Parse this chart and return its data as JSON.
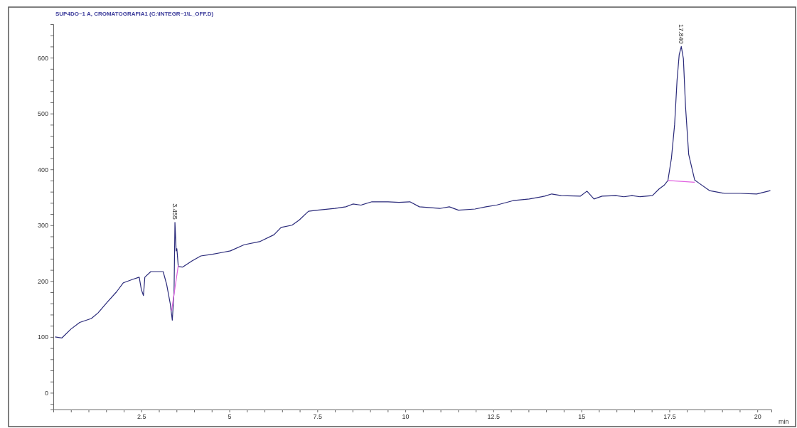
{
  "chart_data": {
    "type": "line",
    "title": "SUP4DO~1 A, CROMATOGRAFIA1 (C:\\INTEGR~1\\L_OFF.D)",
    "xlabel": "min",
    "xlim": [
      0,
      20.4
    ],
    "ylim": [
      -30,
      660
    ],
    "xticks": [
      {
        "value": 0.5,
        "label": null
      },
      {
        "value": 1,
        "label": null
      },
      {
        "value": 1.5,
        "label": null
      },
      {
        "value": 2,
        "label": null
      },
      2.5,
      {
        "value": 3,
        "label": null
      },
      {
        "value": 3.5,
        "label": null
      },
      {
        "value": 4,
        "label": null
      },
      {
        "value": 4.5,
        "label": null
      },
      5,
      {
        "value": 5.5,
        "label": null
      },
      {
        "value": 6,
        "label": null
      },
      {
        "value": 6.5,
        "label": null
      },
      {
        "value": 7,
        "label": null
      },
      7.5,
      {
        "value": 8,
        "label": null
      },
      {
        "value": 8.5,
        "label": null
      },
      {
        "value": 9,
        "label": null
      },
      {
        "value": 9.5,
        "label": null
      },
      10,
      {
        "value": 10.5,
        "label": null
      },
      {
        "value": 11,
        "label": null
      },
      {
        "value": 11.5,
        "label": null
      },
      {
        "value": 12,
        "label": null
      },
      12.5,
      {
        "value": 13,
        "label": null
      },
      {
        "value": 13.5,
        "label": null
      },
      {
        "value": 14,
        "label": null
      },
      {
        "value": 14.5,
        "label": null
      },
      15,
      {
        "value": 15.5,
        "label": null
      },
      {
        "value": 16,
        "label": null
      },
      {
        "value": 16.5,
        "label": null
      },
      {
        "value": 17,
        "label": null
      },
      17.5,
      {
        "value": 18,
        "label": null
      },
      {
        "value": 18.5,
        "label": null
      },
      {
        "value": 19,
        "label": null
      },
      {
        "value": 19.5,
        "label": null
      },
      20
    ],
    "yticks": [
      {
        "value": -20,
        "label": null
      },
      0,
      {
        "value": 20,
        "label": null
      },
      {
        "value": 40,
        "label": null
      },
      {
        "value": 60,
        "label": null
      },
      {
        "value": 80,
        "label": null
      },
      100,
      {
        "value": 120,
        "label": null
      },
      {
        "value": 140,
        "label": null
      },
      {
        "value": 160,
        "label": null
      },
      {
        "value": 180,
        "label": null
      },
      200,
      {
        "value": 220,
        "label": null
      },
      {
        "value": 240,
        "label": null
      },
      {
        "value": 260,
        "label": null
      },
      {
        "value": 280,
        "label": null
      },
      300,
      {
        "value": 320,
        "label": null
      },
      {
        "value": 340,
        "label": null
      },
      {
        "value": 360,
        "label": null
      },
      {
        "value": 380,
        "label": null
      },
      400,
      {
        "value": 420,
        "label": null
      },
      {
        "value": 440,
        "label": null
      },
      {
        "value": 460,
        "label": null
      },
      {
        "value": 480,
        "label": null
      },
      500,
      {
        "value": 520,
        "label": null
      },
      {
        "value": 540,
        "label": null
      },
      {
        "value": 560,
        "label": null
      },
      {
        "value": 580,
        "label": null
      },
      600,
      {
        "value": 620,
        "label": null
      },
      {
        "value": 640,
        "label": null
      }
    ],
    "series": [
      {
        "color": "#2a2a7a",
        "x": [
          0.05,
          0.24,
          0.5,
          0.75,
          1.08,
          1.27,
          1.53,
          1.8,
          1.99,
          2.25,
          2.44,
          2.5,
          2.56,
          2.6,
          2.77,
          3.12,
          3.22,
          3.32,
          3.38,
          3.43,
          3.455,
          3.49,
          3.51,
          3.55,
          3.67,
          3.94,
          4.19,
          4.52,
          4.78,
          5.03,
          5.42,
          5.88,
          6.27,
          6.47,
          6.78,
          6.98,
          7.25,
          7.5,
          8.0,
          8.31,
          8.51,
          8.74,
          9.05,
          9.51,
          9.82,
          10.13,
          10.4,
          10.98,
          11.25,
          11.51,
          11.98,
          12.29,
          12.59,
          13.06,
          13.52,
          13.96,
          14.16,
          14.43,
          14.97,
          15.16,
          15.36,
          15.59,
          15.98,
          16.21,
          16.44,
          16.67,
          17.02,
          17.21,
          17.36,
          17.46,
          17.56,
          17.65,
          17.72,
          17.78,
          17.84,
          17.9,
          17.96,
          18.05,
          18.22,
          18.35,
          18.64,
          19.07,
          19.52,
          19.98,
          20.37
        ],
        "values": [
          100,
          98,
          114,
          126,
          133,
          143,
          162,
          181,
          197,
          203,
          207,
          185,
          174,
          207,
          217,
          217,
          194,
          160,
          130,
          181,
          305,
          254,
          258,
          226,
          225,
          236,
          245,
          248,
          251,
          254,
          265,
          271,
          283,
          296,
          300,
          309,
          325,
          327,
          330,
          333,
          338,
          336,
          342,
          342,
          341,
          342,
          333,
          330,
          333,
          327,
          329,
          333,
          336,
          344,
          347,
          352,
          356,
          353,
          352,
          361,
          347,
          352,
          353,
          351,
          353,
          351,
          353,
          365,
          372,
          380,
          420,
          480,
          560,
          605,
          620,
          598,
          513,
          427,
          381,
          375,
          362,
          357,
          357,
          356,
          362
        ]
      },
      {
        "color": "#e060e0",
        "x": [
          3.36,
          3.55
        ],
        "values": [
          147,
          228
        ]
      },
      {
        "color": "#e060e0",
        "x": [
          17.46,
          18.22
        ],
        "values": [
          380,
          377
        ]
      }
    ],
    "annotations": [
      {
        "text": "3.455",
        "x": 3.455,
        "y": 305
      },
      {
        "text": "17.840",
        "x": 17.84,
        "y": 620
      }
    ],
    "grid": false,
    "marker": "none",
    "line_style": "solid"
  }
}
